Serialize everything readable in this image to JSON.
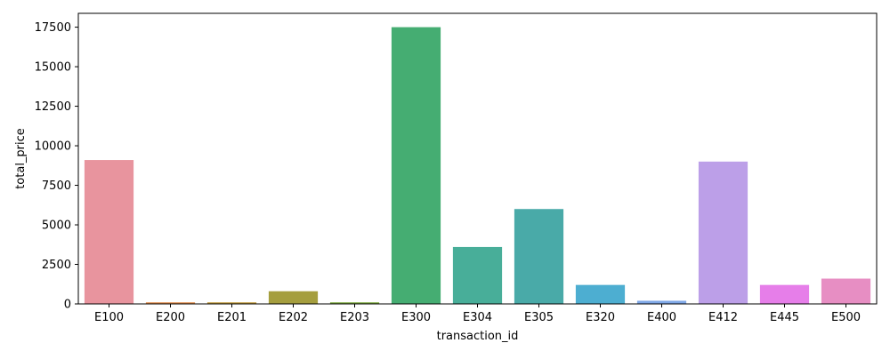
{
  "chart_data": {
    "type": "bar",
    "title": "",
    "xlabel": "transaction_id",
    "ylabel": "total_price",
    "categories": [
      "E100",
      "E200",
      "E201",
      "E202",
      "E203",
      "E300",
      "E304",
      "E305",
      "E320",
      "E400",
      "E412",
      "E445",
      "E500"
    ],
    "values": [
      9100,
      100,
      100,
      800,
      100,
      17500,
      3600,
      6000,
      1200,
      200,
      9000,
      1200,
      1600
    ],
    "colors": [
      "#e8949e",
      "#e08a47",
      "#c09a3a",
      "#a59e3e",
      "#7aa83c",
      "#45ad72",
      "#48ae99",
      "#49aaa8",
      "#4daed1",
      "#7fa8e7",
      "#bc9fe8",
      "#e67ee9",
      "#e78ec3"
    ],
    "yticks": [
      0,
      2500,
      5000,
      7500,
      10000,
      12500,
      15000,
      17500
    ],
    "ylim": [
      0,
      18375
    ],
    "grid": false,
    "legend": "none"
  }
}
